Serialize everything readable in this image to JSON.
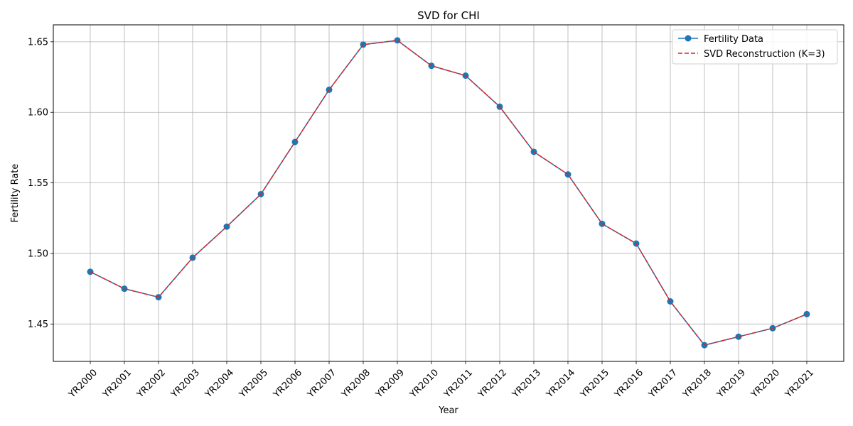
{
  "chart_data": {
    "type": "line",
    "title": "SVD for CHI",
    "xlabel": "Year",
    "ylabel": "Fertility Rate",
    "categories": [
      "YR2000",
      "YR2001",
      "YR2002",
      "YR2003",
      "YR2004",
      "YR2005",
      "YR2006",
      "YR2007",
      "YR2008",
      "YR2009",
      "YR2010",
      "YR2011",
      "YR2012",
      "YR2013",
      "YR2014",
      "YR2015",
      "YR2016",
      "YR2017",
      "YR2018",
      "YR2019",
      "YR2020",
      "YR2021"
    ],
    "ylim": [
      1.4235,
      1.662
    ],
    "yticks": [
      1.45,
      1.5,
      1.55,
      1.6,
      1.65
    ],
    "ytick_labels": [
      "1.45",
      "1.50",
      "1.55",
      "1.60",
      "1.65"
    ],
    "grid": true,
    "legend_position": "top-right",
    "series": [
      {
        "name": "Fertility Data",
        "color": "#1f77b4",
        "style": "solid-with-markers",
        "values": [
          1.487,
          1.475,
          1.469,
          1.497,
          1.519,
          1.542,
          1.579,
          1.616,
          1.648,
          1.651,
          1.633,
          1.626,
          1.604,
          1.572,
          1.556,
          1.521,
          1.507,
          1.466,
          1.435,
          1.441,
          1.447,
          1.457
        ]
      },
      {
        "name": "SVD Reconstruction (K=3)",
        "color": "#d62728",
        "style": "dashed",
        "values": [
          1.487,
          1.475,
          1.469,
          1.497,
          1.519,
          1.542,
          1.579,
          1.616,
          1.648,
          1.651,
          1.633,
          1.626,
          1.604,
          1.572,
          1.556,
          1.521,
          1.507,
          1.466,
          1.435,
          1.441,
          1.447,
          1.457
        ]
      }
    ]
  }
}
